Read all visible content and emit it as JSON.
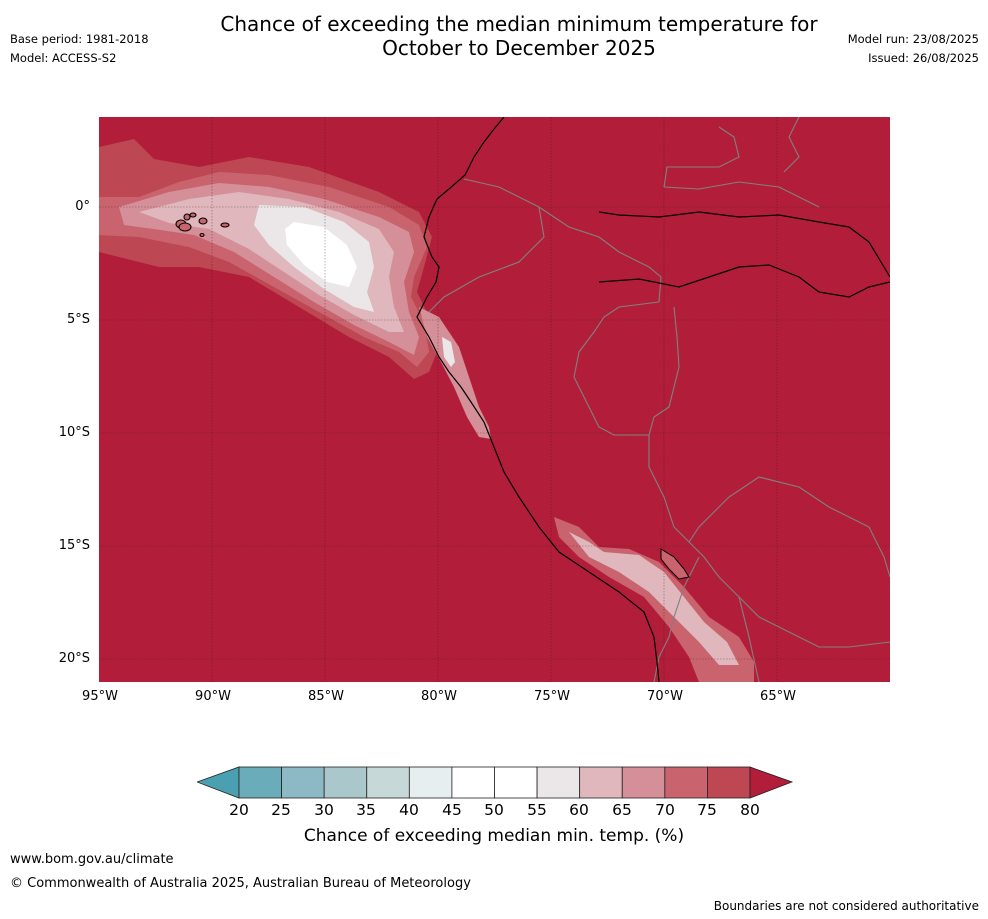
{
  "header": {
    "title_line1": "Chance of exceeding the median minimum temperature for",
    "title_line2": "October to December 2025",
    "base_period": "Base period: 1981-2018",
    "model": "Model: ACCESS-S2",
    "model_run": "Model run: 23/08/2025",
    "issued": "Issued: 26/08/2025"
  },
  "map": {
    "lat_labels": [
      "0°",
      "5°S",
      "10°S",
      "15°S",
      "20°S"
    ],
    "lon_labels": [
      "95°W",
      "90°W",
      "85°W",
      "80°W",
      "75°W",
      "70°W",
      "65°W"
    ],
    "region_bounds": {
      "lon_min": -95,
      "lon_max": -60,
      "lat_min": -21,
      "lat_max": 4
    },
    "background_color": "#b21e3a"
  },
  "colorbar": {
    "ticks": [
      "20",
      "25",
      "30",
      "35",
      "40",
      "45",
      "50",
      "55",
      "60",
      "65",
      "70",
      "75",
      "80"
    ],
    "colors": [
      "#6aacba",
      "#8db9c4",
      "#aac8cc",
      "#c7d8d9",
      "#e7eef0",
      "#ffffff",
      "#ffffff",
      "#ebe7e8",
      "#dfb7bc",
      "#d58f98",
      "#c9646f",
      "#bd4753"
    ],
    "under_color": "#4aa0b0",
    "over_color": "#b21e3a",
    "label": "Chance of exceeding median min. temp. (%)"
  },
  "footer": {
    "url": "www.bom.gov.au/climate",
    "copyright": "© Commonwealth of Australia 2025, Australian Bureau of Meteorology",
    "disclaimer": "Boundaries are not considered authoritative"
  }
}
